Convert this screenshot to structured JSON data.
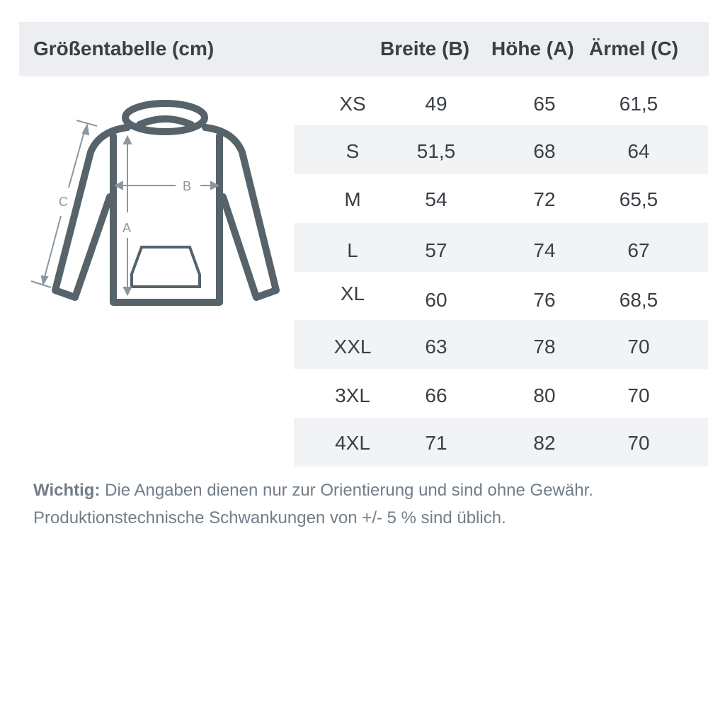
{
  "header": {
    "title": "Größentabelle (cm)",
    "columns": [
      "Breite (B)",
      "Höhe (A)",
      "Ärmel (C)"
    ]
  },
  "rows": [
    {
      "size": "XS",
      "b": "49",
      "a": "65",
      "c": "61,5"
    },
    {
      "size": "S",
      "b": "51,5",
      "a": "68",
      "c": "64"
    },
    {
      "size": "M",
      "b": "54",
      "a": "72",
      "c": "65,5"
    },
    {
      "size": "L",
      "b": "57",
      "a": "74",
      "c": "67"
    },
    {
      "size": "XL",
      "b": "60",
      "a": "76",
      "c": "68,5"
    },
    {
      "size": "XXL",
      "b": "63",
      "a": "78",
      "c": "70"
    },
    {
      "size": "3XL",
      "b": "66",
      "a": "80",
      "c": "70"
    },
    {
      "size": "4XL",
      "b": "71",
      "a": "82",
      "c": "70"
    }
  ],
  "diagram": {
    "labels": {
      "a": "A",
      "b": "B",
      "c": "C"
    },
    "colors": {
      "outline": "#56636b",
      "measure": "#8a96a0"
    }
  },
  "note": {
    "bold": "Wichtig:",
    "line1": "Die Angaben dienen nur zur Orientierung und sind ohne Gewähr.",
    "line2": "Produktionstechnische Schwankungen von +/- 5 % sind üblich."
  }
}
